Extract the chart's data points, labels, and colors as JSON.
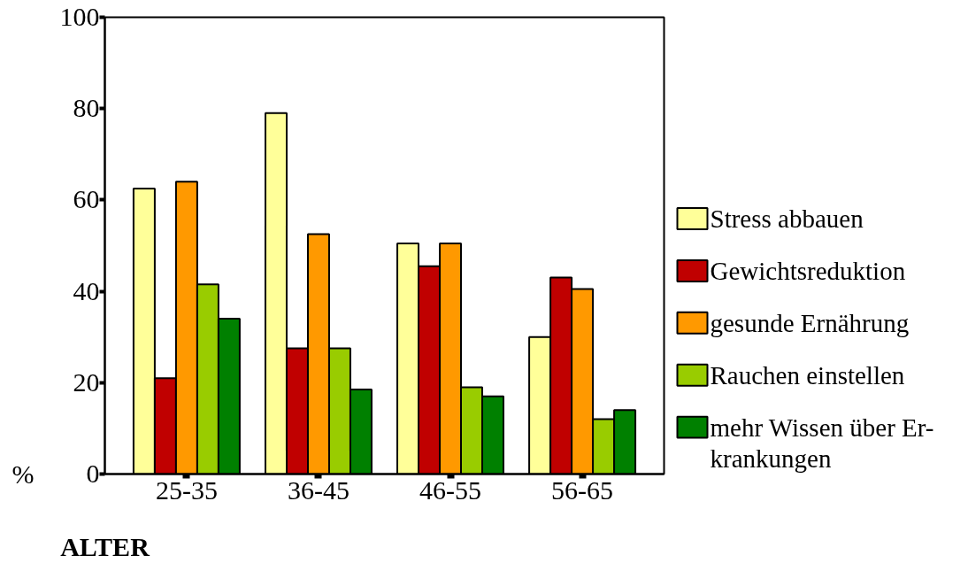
{
  "chart_data": {
    "type": "bar",
    "xlabel": "ALTER",
    "ylabel": "%",
    "categories": [
      "25-35",
      "36-45",
      "46-55",
      "56-65"
    ],
    "series": [
      {
        "name": "Stress abbauen",
        "color": "#ffff99",
        "values": [
          62.5,
          79,
          50.5,
          30
        ]
      },
      {
        "name": "Gewichtsreduktion",
        "color": "#c00000",
        "values": [
          21,
          27.5,
          45.5,
          43
        ]
      },
      {
        "name": "gesunde Ernährung",
        "color": "#ff9900",
        "values": [
          64,
          52.5,
          50.5,
          40.5
        ]
      },
      {
        "name": "Rauchen einstellen",
        "color": "#99cc00",
        "values": [
          41.5,
          27.5,
          19,
          12
        ]
      },
      {
        "name": "mehr Wissen über Er-\nkrankungen",
        "color": "#008000",
        "values": [
          34,
          18.5,
          17,
          14
        ]
      }
    ],
    "ylim": [
      0,
      100
    ],
    "yticks": [
      0,
      20,
      40,
      60,
      80,
      100
    ],
    "legend": "right"
  }
}
